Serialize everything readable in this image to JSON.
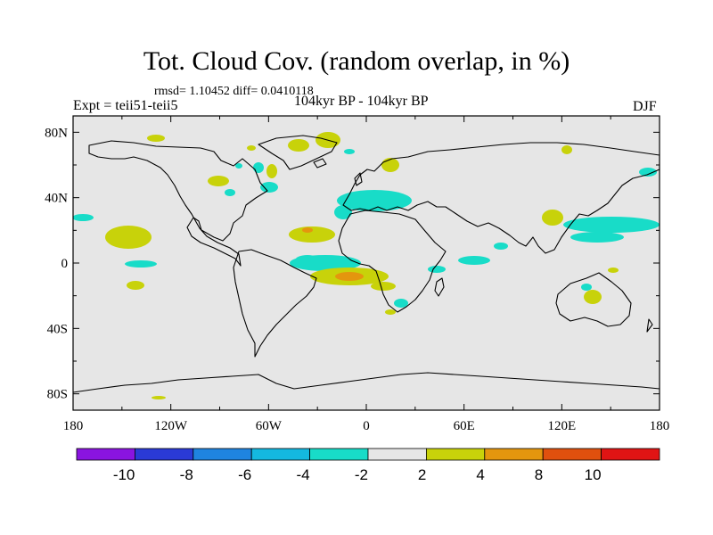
{
  "title": "Tot. Cloud Cov. (random overlap, in %)",
  "stats": "rmsd= 1.10452 diff= 0.0410118",
  "experiment": "Expt = teii51-teii5",
  "period": "104kyr BP - 104kyr BP",
  "season": "DJF",
  "lat_labels": [
    "80N",
    "40N",
    "0",
    "40S",
    "80S"
  ],
  "lat_values": [
    80,
    40,
    0,
    -40,
    -80
  ],
  "lon_labels": [
    "180",
    "120W",
    "60W",
    "0",
    "60E",
    "120E",
    "180"
  ],
  "lon_values": [
    -180,
    -120,
    -60,
    0,
    60,
    120,
    180
  ],
  "colorbar": {
    "labels": [
      "-10",
      "-8",
      "-6",
      "-4",
      "-2",
      "2",
      "4",
      "8",
      "10"
    ],
    "colors": [
      "#8a14e0",
      "#2a3ad6",
      "#1f84e0",
      "#14b8e0",
      "#18dcc8",
      "#e6e6e6",
      "#c8d20a",
      "#e4960e",
      "#e0500e",
      "#e01414"
    ]
  },
  "map_background": "#e6e6e6"
}
